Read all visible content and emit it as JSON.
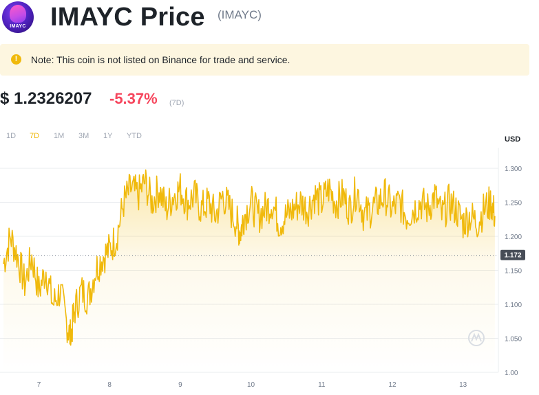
{
  "header": {
    "logo_text": "IMAYC",
    "title": "IMAYC Price",
    "symbol": "(IMAYC)"
  },
  "note": {
    "icon": "warning-icon",
    "text": "Note: This coin is not listed on Binance for trade and service."
  },
  "price": {
    "value": "$ 1.2326207",
    "change": "-5.37%",
    "period": "(7D)"
  },
  "ranges": [
    {
      "label": "1D",
      "active": false
    },
    {
      "label": "7D",
      "active": true
    },
    {
      "label": "1M",
      "active": false
    },
    {
      "label": "3M",
      "active": false
    },
    {
      "label": "1Y",
      "active": false
    },
    {
      "label": "YTD",
      "active": false
    }
  ],
  "chart_data": {
    "type": "area",
    "currency_label": "USD",
    "color": "#f0b90b",
    "y_ticks": [
      "1.300",
      "1.250",
      "1.200",
      "1.150",
      "1.100",
      "1.050",
      "1.00"
    ],
    "ylim": [
      1.0,
      1.3
    ],
    "x_ticks": [
      "7",
      "8",
      "9",
      "10",
      "11",
      "12",
      "13"
    ],
    "reference_line": {
      "value": 1.172,
      "label": "1.172"
    },
    "x": [
      6.5,
      6.6,
      6.7,
      6.8,
      6.9,
      7.0,
      7.1,
      7.2,
      7.3,
      7.4,
      7.45,
      7.5,
      7.6,
      7.7,
      7.8,
      7.9,
      8.0,
      8.1,
      8.2,
      8.3,
      8.4,
      8.5,
      8.6,
      8.7,
      8.8,
      8.9,
      9.0,
      9.1,
      9.2,
      9.3,
      9.4,
      9.5,
      9.6,
      9.7,
      9.8,
      9.85,
      9.9,
      10.0,
      10.1,
      10.2,
      10.3,
      10.4,
      10.5,
      10.6,
      10.7,
      10.8,
      10.9,
      11.0,
      11.1,
      11.2,
      11.3,
      11.4,
      11.5,
      11.6,
      11.7,
      11.8,
      11.9,
      12.0,
      12.1,
      12.2,
      12.3,
      12.4,
      12.5,
      12.6,
      12.7,
      12.8,
      12.9,
      13.0,
      13.1,
      13.2,
      13.3,
      13.4,
      13.45
    ],
    "values": [
      1.16,
      1.2,
      1.17,
      1.13,
      1.17,
      1.12,
      1.15,
      1.1,
      1.12,
      1.07,
      1.05,
      1.09,
      1.12,
      1.11,
      1.15,
      1.17,
      1.18,
      1.2,
      1.25,
      1.27,
      1.26,
      1.28,
      1.25,
      1.27,
      1.24,
      1.26,
      1.27,
      1.25,
      1.26,
      1.24,
      1.25,
      1.23,
      1.26,
      1.24,
      1.22,
      1.205,
      1.23,
      1.25,
      1.23,
      1.24,
      1.25,
      1.22,
      1.23,
      1.24,
      1.25,
      1.24,
      1.26,
      1.25,
      1.27,
      1.25,
      1.26,
      1.24,
      1.27,
      1.23,
      1.24,
      1.25,
      1.26,
      1.24,
      1.25,
      1.23,
      1.24,
      1.25,
      1.24,
      1.26,
      1.23,
      1.25,
      1.24,
      1.22,
      1.23,
      1.22,
      1.24,
      1.25,
      1.23
    ]
  }
}
